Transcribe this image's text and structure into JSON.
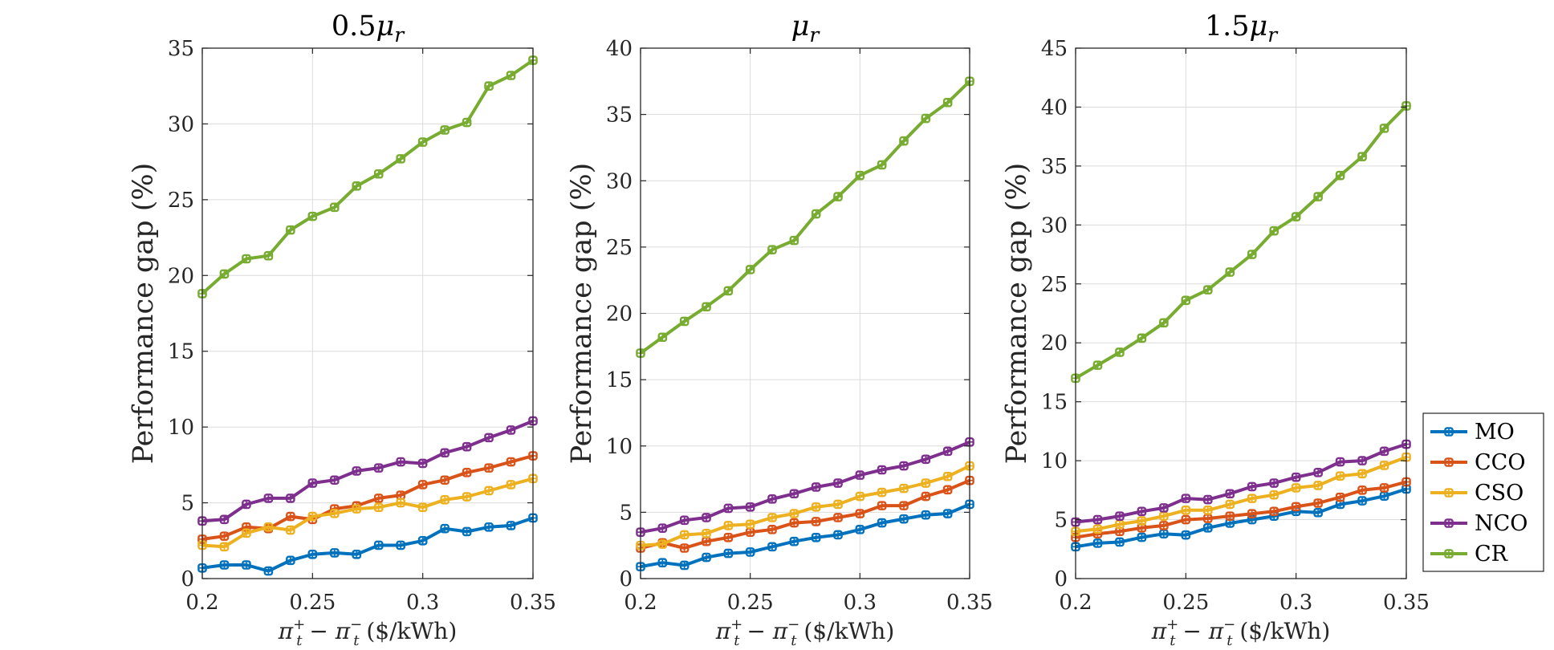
{
  "x_values": [
    0.2,
    0.21,
    0.22,
    0.23,
    0.24,
    0.25,
    0.26,
    0.27,
    0.28,
    0.29,
    0.3,
    0.31,
    0.32,
    0.33,
    0.34,
    0.35
  ],
  "x_tick_labels": [
    "0.2",
    "0.25",
    "0.3",
    "0.35"
  ],
  "legend": {
    "entries": [
      {
        "name": "MO",
        "color": "#0072BD"
      },
      {
        "name": "CCO",
        "color": "#D95319"
      },
      {
        "name": "CSO",
        "color": "#EDB120"
      },
      {
        "name": "NCO",
        "color": "#7E2F8E"
      },
      {
        "name": "CR",
        "color": "#77AC30"
      }
    ]
  },
  "chart_data": [
    {
      "type": "line",
      "title": "0.5μr",
      "xlabel": "πt+ − πt− ($/kWh)",
      "ylabel": "Performance gap (%)",
      "xlim": [
        0.2,
        0.35
      ],
      "ylim": [
        0,
        35
      ],
      "y_ticks": [
        0,
        5,
        10,
        15,
        20,
        25,
        30,
        35
      ],
      "grid": true,
      "series": [
        {
          "name": "MO",
          "values": [
            0.7,
            0.9,
            0.9,
            0.5,
            1.2,
            1.6,
            1.7,
            1.6,
            2.2,
            2.2,
            2.5,
            3.3,
            3.1,
            3.4,
            3.5,
            4.0
          ]
        },
        {
          "name": "CCO",
          "values": [
            2.6,
            2.8,
            3.4,
            3.3,
            4.1,
            3.9,
            4.6,
            4.8,
            5.3,
            5.5,
            6.2,
            6.5,
            7.0,
            7.3,
            7.7,
            8.1
          ]
        },
        {
          "name": "CSO",
          "values": [
            2.2,
            2.1,
            3.0,
            3.4,
            3.2,
            4.1,
            4.3,
            4.6,
            4.7,
            5.0,
            4.7,
            5.2,
            5.4,
            5.8,
            6.2,
            6.6
          ]
        },
        {
          "name": "NCO",
          "values": [
            3.8,
            3.9,
            4.9,
            5.3,
            5.3,
            6.3,
            6.5,
            7.1,
            7.3,
            7.7,
            7.6,
            8.3,
            8.7,
            9.3,
            9.8,
            10.4
          ]
        },
        {
          "name": "CR",
          "values": [
            18.8,
            20.1,
            21.1,
            21.3,
            23.0,
            23.9,
            24.5,
            25.9,
            26.7,
            27.7,
            28.8,
            29.6,
            30.1,
            32.5,
            33.2,
            34.2
          ]
        }
      ]
    },
    {
      "type": "line",
      "title": "μr",
      "xlabel": "πt+ − πt− ($/kWh)",
      "ylabel": "Performance gap (%)",
      "xlim": [
        0.2,
        0.35
      ],
      "ylim": [
        0,
        40
      ],
      "y_ticks": [
        0,
        5,
        10,
        15,
        20,
        25,
        30,
        35,
        40
      ],
      "grid": true,
      "series": [
        {
          "name": "MO",
          "values": [
            0.9,
            1.2,
            1.0,
            1.6,
            1.9,
            2.0,
            2.4,
            2.8,
            3.1,
            3.3,
            3.7,
            4.2,
            4.5,
            4.8,
            4.9,
            5.6
          ]
        },
        {
          "name": "CCO",
          "values": [
            2.3,
            2.7,
            2.3,
            2.8,
            3.1,
            3.5,
            3.7,
            4.2,
            4.3,
            4.6,
            4.9,
            5.5,
            5.5,
            6.2,
            6.7,
            7.4
          ]
        },
        {
          "name": "CSO",
          "values": [
            2.5,
            2.6,
            3.3,
            3.4,
            4.0,
            4.1,
            4.6,
            4.9,
            5.4,
            5.6,
            6.2,
            6.5,
            6.8,
            7.2,
            7.7,
            8.5
          ]
        },
        {
          "name": "NCO",
          "values": [
            3.5,
            3.8,
            4.4,
            4.6,
            5.3,
            5.4,
            6.0,
            6.4,
            6.9,
            7.2,
            7.8,
            8.2,
            8.5,
            9.0,
            9.6,
            10.3
          ]
        },
        {
          "name": "CR",
          "values": [
            17.0,
            18.2,
            19.4,
            20.5,
            21.7,
            23.3,
            24.8,
            25.5,
            27.5,
            28.8,
            30.4,
            31.2,
            33.0,
            34.7,
            35.9,
            37.5
          ]
        }
      ]
    },
    {
      "type": "line",
      "title": "1.5μr",
      "xlabel": "πt+ − πt− ($/kWh)",
      "ylabel": "Performance gap (%)",
      "xlim": [
        0.2,
        0.35
      ],
      "ylim": [
        0,
        45
      ],
      "y_ticks": [
        0,
        5,
        10,
        15,
        20,
        25,
        30,
        35,
        40,
        45
      ],
      "grid": true,
      "series": [
        {
          "name": "MO",
          "values": [
            2.7,
            3.0,
            3.1,
            3.5,
            3.8,
            3.7,
            4.3,
            4.7,
            5.0,
            5.3,
            5.7,
            5.6,
            6.3,
            6.6,
            7.0,
            7.6
          ]
        },
        {
          "name": "CCO",
          "values": [
            3.5,
            3.8,
            4.0,
            4.3,
            4.5,
            5.0,
            5.1,
            5.3,
            5.5,
            5.7,
            6.1,
            6.4,
            6.9,
            7.5,
            7.7,
            8.2
          ]
        },
        {
          "name": "CSO",
          "values": [
            4.0,
            4.2,
            4.6,
            4.9,
            5.3,
            5.8,
            5.8,
            6.3,
            6.8,
            7.1,
            7.7,
            7.9,
            8.7,
            8.9,
            9.6,
            10.3
          ]
        },
        {
          "name": "NCO",
          "values": [
            4.8,
            5.0,
            5.3,
            5.7,
            6.0,
            6.8,
            6.7,
            7.2,
            7.8,
            8.1,
            8.6,
            9.0,
            9.9,
            10.0,
            10.8,
            11.4
          ]
        },
        {
          "name": "CR",
          "values": [
            17.0,
            18.1,
            19.2,
            20.4,
            21.7,
            23.6,
            24.5,
            26.0,
            27.5,
            29.5,
            30.7,
            32.4,
            34.2,
            35.8,
            38.2,
            40.1
          ]
        }
      ]
    }
  ]
}
